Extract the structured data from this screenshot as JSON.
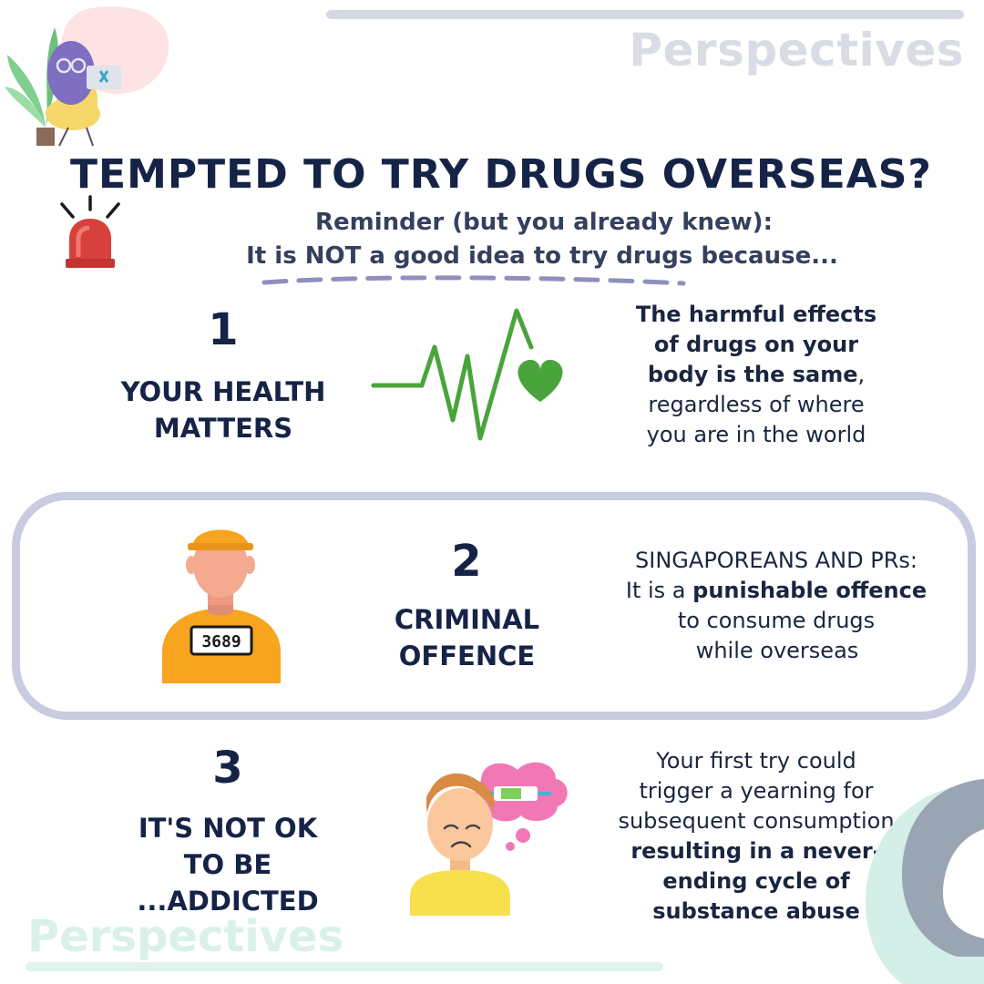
{
  "brand": "Perspectives",
  "title": "TEMPTED TO TRY DRUGS OVERSEAS?",
  "subtitle_line1": "Reminder (but you already knew):",
  "subtitle_line2": "It is NOT a good idea to try drugs because...",
  "items": [
    {
      "number": "1",
      "heading": [
        "YOUR HEALTH",
        "MATTERS"
      ],
      "text": [
        {
          "bold": "The harmful effects",
          "normal": ""
        },
        {
          "bold": "of drugs on your",
          "normal": ""
        },
        {
          "bold": "body is the same",
          "normal": ","
        },
        {
          "bold": "",
          "normal": "regardless of where"
        },
        {
          "bold": "",
          "normal": "you are in the world"
        }
      ]
    },
    {
      "number": "2",
      "heading": [
        "CRIMINAL",
        "OFFENCE"
      ],
      "badge": "3689",
      "text": [
        {
          "bold": "",
          "normal": "SINGAPOREANS AND PRs:"
        },
        {
          "bold": "punishable offence",
          "pre": "It is a ",
          "normal": ""
        },
        {
          "bold": "",
          "normal": "to consume drugs"
        },
        {
          "bold": "",
          "normal": "while overseas"
        }
      ]
    },
    {
      "number": "3",
      "heading": [
        "IT'S NOT OK",
        "TO BE",
        "...ADDICTED"
      ],
      "text": [
        {
          "bold": "",
          "normal": "Your first try could"
        },
        {
          "bold": "",
          "normal": "trigger a yearning for"
        },
        {
          "bold": "",
          "normal": "subsequent consumption"
        },
        {
          "bold": "resulting in a never-",
          "normal": ""
        },
        {
          "bold": "ending cycle of",
          "normal": ""
        },
        {
          "bold": "substance abuse",
          "normal": ""
        }
      ]
    }
  ],
  "colors": {
    "navy": "#152347",
    "green": "#4aa43c",
    "orange": "#f7a41e",
    "skin": "#f4a991",
    "alarm": "#d8403c",
    "box_border": "#c9cbe0",
    "teal_deco": "#d4efe7",
    "gray_deco": "#9aa5b4"
  },
  "icons": [
    "plant-person-laptop-icon",
    "alarm-siren-icon",
    "heartbeat-icon",
    "prisoner-icon",
    "sad-boy-thinking-syringe-icon"
  ]
}
